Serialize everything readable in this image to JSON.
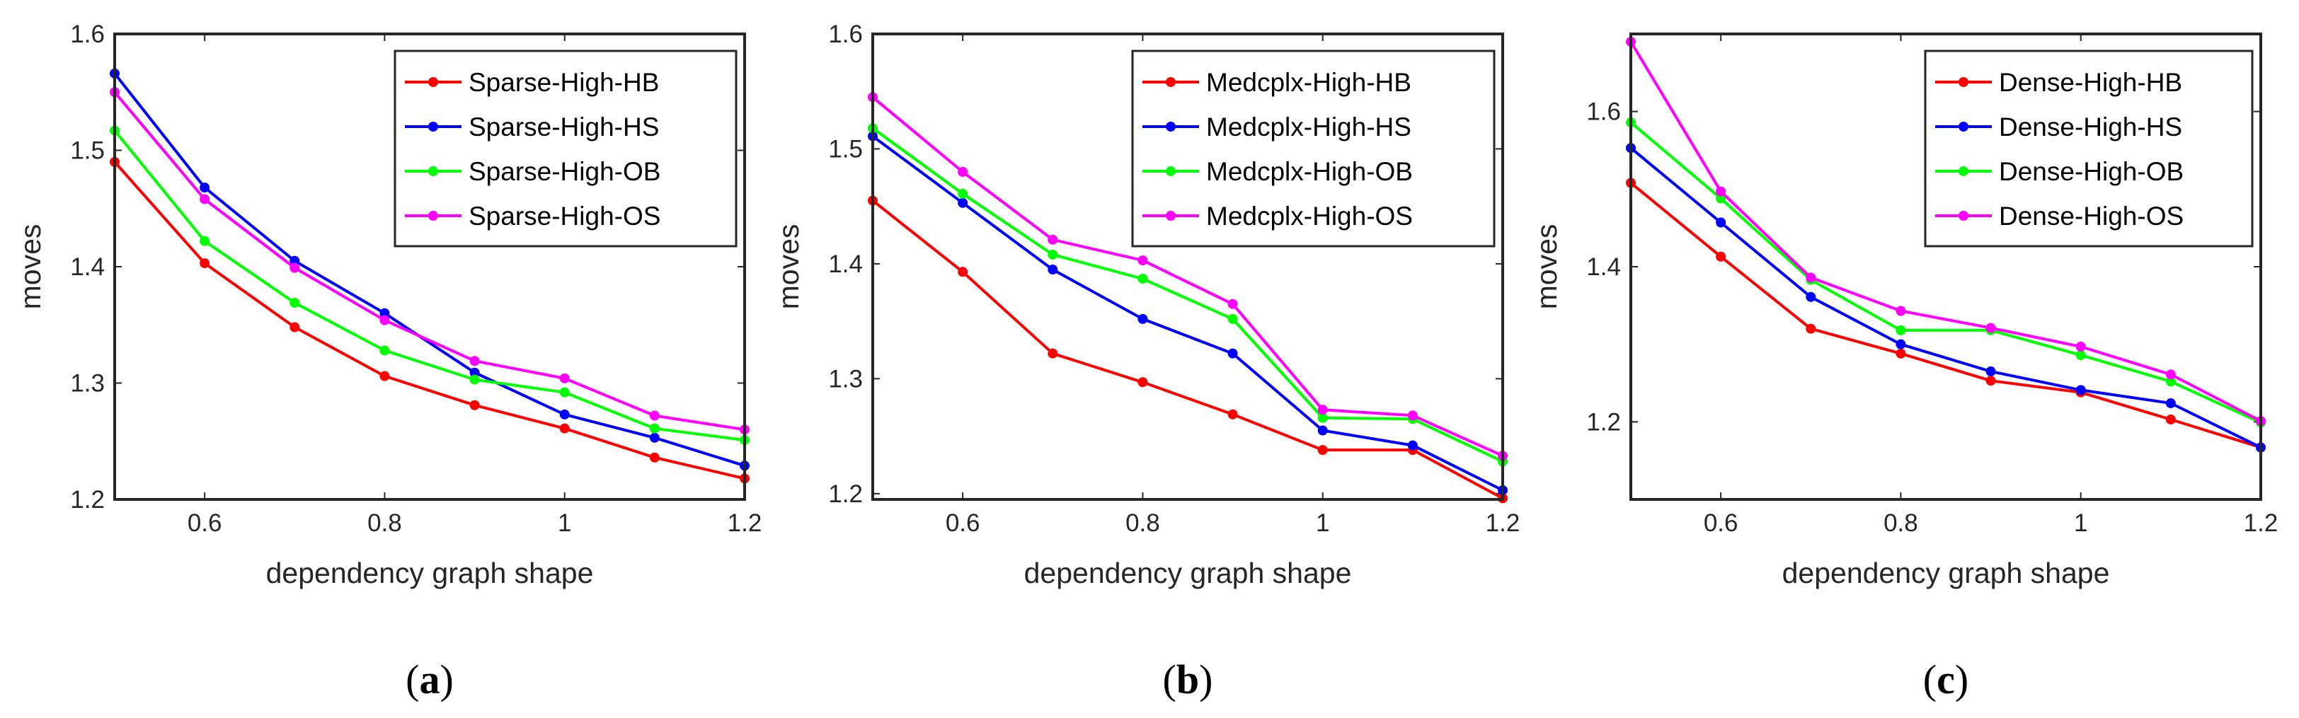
{
  "colors": {
    "HB": "#ff0000",
    "HS": "#0000ff",
    "OB": "#00ff00",
    "OS": "#ff00ff",
    "axis": "#262626"
  },
  "chart_data": [
    {
      "type": "line",
      "panel_label": {
        "open": "(",
        "letter": "a",
        "close": ")"
      },
      "xlabel": "dependency graph shape",
      "ylabel": "moves",
      "xlim": [
        0.5,
        1.2
      ],
      "ylim": [
        1.2,
        1.6
      ],
      "xticks": [
        0.6,
        0.8,
        1,
        1.2
      ],
      "xtick_labels": [
        "0.6",
        "0.8",
        "1",
        "1.2"
      ],
      "yticks": [
        1.2,
        1.3,
        1.4,
        1.5,
        1.6
      ],
      "ytick_labels": [
        "1.2",
        "1.3",
        "1.4",
        "1.5",
        "1.6"
      ],
      "legend_position": "top-right",
      "grid": false,
      "x": [
        0.5,
        0.6,
        0.7,
        0.8,
        0.9,
        1.0,
        1.1,
        1.2
      ],
      "series": [
        {
          "name": "Sparse-High-HB",
          "color_key": "HB",
          "values": [
            1.49,
            1.403,
            1.348,
            1.306,
            1.281,
            1.261,
            1.236,
            1.218
          ]
        },
        {
          "name": "Sparse-High-HS",
          "color_key": "HS",
          "values": [
            1.566,
            1.468,
            1.405,
            1.36,
            1.309,
            1.273,
            1.253,
            1.229
          ]
        },
        {
          "name": "Sparse-High-OB",
          "color_key": "OB",
          "values": [
            1.517,
            1.422,
            1.369,
            1.328,
            1.303,
            1.292,
            1.261,
            1.251
          ]
        },
        {
          "name": "Sparse-High-OS",
          "color_key": "OS",
          "values": [
            1.55,
            1.458,
            1.399,
            1.354,
            1.319,
            1.304,
            1.272,
            1.26
          ]
        }
      ]
    },
    {
      "type": "line",
      "panel_label": {
        "open": "(",
        "letter": "b",
        "close": ")"
      },
      "xlabel": "dependency graph shape",
      "ylabel": "moves",
      "xlim": [
        0.5,
        1.2
      ],
      "ylim": [
        1.195,
        1.6
      ],
      "xticks": [
        0.6,
        0.8,
        1,
        1.2
      ],
      "xtick_labels": [
        "0.6",
        "0.8",
        "1",
        "1.2"
      ],
      "yticks": [
        1.2,
        1.3,
        1.4,
        1.5,
        1.6
      ],
      "ytick_labels": [
        "1.2",
        "1.3",
        "1.4",
        "1.5",
        "1.6"
      ],
      "legend_position": "top-right",
      "grid": false,
      "x": [
        0.5,
        0.6,
        0.7,
        0.8,
        0.9,
        1.0,
        1.1,
        1.2
      ],
      "series": [
        {
          "name": "Medcplx-High-HB",
          "color_key": "HB",
          "values": [
            1.455,
            1.393,
            1.322,
            1.297,
            1.269,
            1.238,
            1.238,
            1.196
          ]
        },
        {
          "name": "Medcplx-High-HS",
          "color_key": "HS",
          "values": [
            1.511,
            1.453,
            1.395,
            1.352,
            1.322,
            1.255,
            1.242,
            1.203
          ]
        },
        {
          "name": "Medcplx-High-OB",
          "color_key": "OB",
          "values": [
            1.518,
            1.461,
            1.408,
            1.387,
            1.352,
            1.266,
            1.265,
            1.228
          ]
        },
        {
          "name": "Medcplx-High-OS",
          "color_key": "OS",
          "values": [
            1.545,
            1.48,
            1.421,
            1.403,
            1.365,
            1.273,
            1.268,
            1.233
          ]
        }
      ]
    },
    {
      "type": "line",
      "panel_label": {
        "open": "(",
        "letter": "c",
        "close": ")"
      },
      "xlabel": "dependency graph shape",
      "ylabel": "moves",
      "xlim": [
        0.5,
        1.2
      ],
      "ylim": [
        1.1,
        1.7
      ],
      "xticks": [
        0.6,
        0.8,
        1,
        1.2
      ],
      "xtick_labels": [
        "0.6",
        "0.8",
        "1",
        "1.2"
      ],
      "yticks": [
        1.2,
        1.4,
        1.6
      ],
      "ytick_labels": [
        "1.2",
        "1.4",
        "1.6"
      ],
      "legend_position": "top-right",
      "grid": false,
      "x": [
        0.5,
        0.6,
        0.7,
        0.8,
        0.9,
        1.0,
        1.1,
        1.2
      ],
      "series": [
        {
          "name": "Dense-High-HB",
          "color_key": "HB",
          "values": [
            1.508,
            1.413,
            1.32,
            1.288,
            1.253,
            1.238,
            1.203,
            1.167
          ]
        },
        {
          "name": "Dense-High-HS",
          "color_key": "HS",
          "values": [
            1.553,
            1.457,
            1.361,
            1.3,
            1.265,
            1.241,
            1.224,
            1.167
          ]
        },
        {
          "name": "Dense-High-OB",
          "color_key": "OB",
          "values": [
            1.586,
            1.488,
            1.383,
            1.318,
            1.318,
            1.286,
            1.252,
            1.199
          ]
        },
        {
          "name": "Dense-High-OS",
          "color_key": "OS",
          "values": [
            1.69,
            1.497,
            1.386,
            1.343,
            1.321,
            1.297,
            1.261,
            1.201
          ]
        }
      ]
    }
  ]
}
